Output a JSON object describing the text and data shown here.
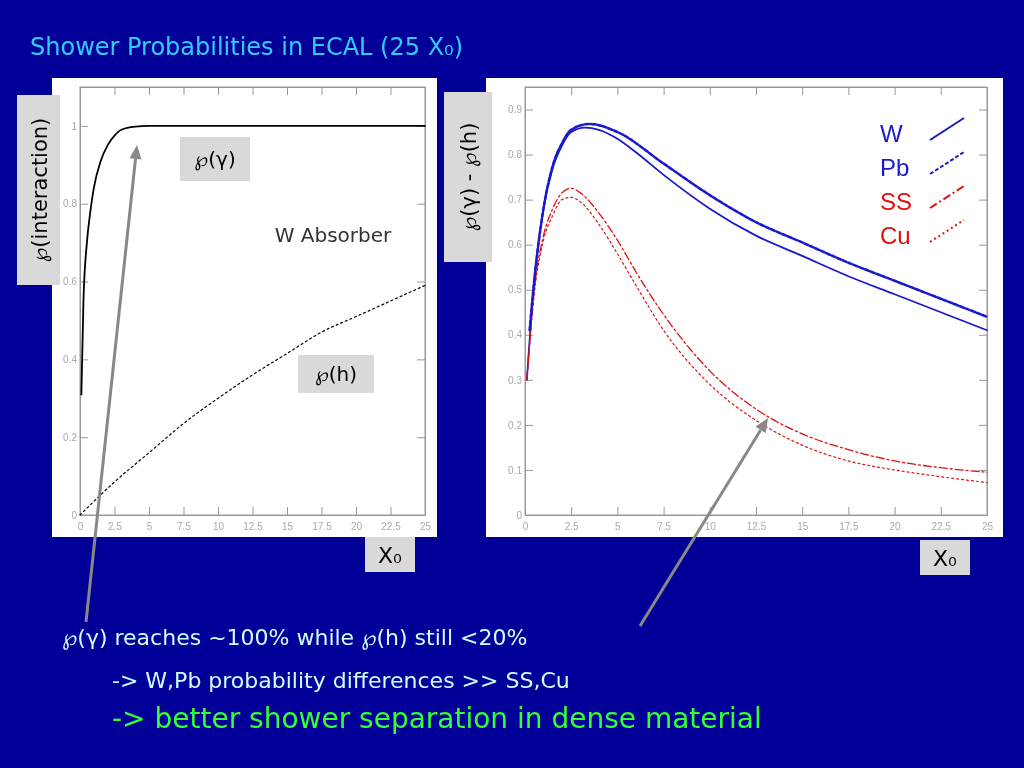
{
  "chart_data": [
    {
      "type": "line",
      "title": "Shower Probabilities in ECAL (25 X₀)",
      "xlabel": "X₀",
      "ylabel": "℘(interaction)",
      "xlim": [
        0,
        25
      ],
      "ylim": [
        0,
        1.1
      ],
      "xticks": [
        0,
        2.5,
        5,
        7.5,
        10,
        12.5,
        15,
        17.5,
        20,
        22.5,
        25
      ],
      "yticks": [
        0,
        0.2,
        0.4,
        0.6,
        0.8,
        1
      ],
      "legend": false,
      "marker": "none",
      "series": [
        {
          "name": "℘(γ)",
          "color": "#000000",
          "line_style": "solid",
          "x": [
            0.1,
            0.25,
            0.5,
            0.75,
            1,
            1.5,
            2,
            2.5,
            3,
            4,
            5,
            7.5,
            10,
            15,
            20,
            25
          ],
          "values": [
            0.31,
            0.55,
            0.7,
            0.78,
            0.84,
            0.91,
            0.95,
            0.975,
            0.99,
            0.998,
            1,
            1,
            1,
            1,
            1,
            1
          ]
        },
        {
          "name": "℘(h)",
          "color": "#000000",
          "line_style": "dotted",
          "x": [
            0,
            2.5,
            5,
            7.5,
            10,
            12.5,
            15,
            17.5,
            20,
            22.5,
            25
          ],
          "values": [
            0,
            0.085,
            0.16,
            0.235,
            0.3,
            0.36,
            0.415,
            0.47,
            0.51,
            0.55,
            0.59
          ]
        }
      ],
      "annotations": [
        "W Absorber"
      ]
    },
    {
      "type": "line",
      "xlabel": "X₀",
      "ylabel": "℘(γ) - ℘(h)",
      "xlim": [
        0,
        25
      ],
      "ylim": [
        0,
        0.95
      ],
      "xticks": [
        0,
        2.5,
        5,
        7.5,
        10,
        12.5,
        15,
        17.5,
        20,
        22.5,
        25
      ],
      "yticks": [
        0,
        0.1,
        0.2,
        0.3,
        0.4,
        0.5,
        0.6,
        0.7,
        0.8,
        0.9
      ],
      "legend": "top right",
      "marker": "none",
      "series": [
        {
          "name": "W",
          "color": "#1a1acc",
          "line_style": "solid",
          "x": [
            0.1,
            0.5,
            1,
            1.5,
            2,
            2.5,
            3.25,
            4,
            5,
            6,
            7.5,
            10,
            12.5,
            15,
            17.5,
            20,
            22.5,
            25
          ],
          "values": [
            0.3,
            0.52,
            0.68,
            0.77,
            0.82,
            0.85,
            0.86,
            0.855,
            0.835,
            0.805,
            0.755,
            0.68,
            0.62,
            0.575,
            0.53,
            0.49,
            0.45,
            0.41
          ]
        },
        {
          "name": "Pb",
          "color": "#1a1acc",
          "line_style": "dashed",
          "x": [
            0.25,
            0.5,
            1,
            1.5,
            2,
            2.5,
            3.5,
            5,
            7.5,
            10,
            12.5,
            15,
            17.5,
            20,
            22.5,
            25
          ],
          "values": [
            0.41,
            0.52,
            0.68,
            0.775,
            0.825,
            0.855,
            0.868,
            0.85,
            0.78,
            0.71,
            0.65,
            0.605,
            0.56,
            0.52,
            0.48,
            0.44
          ]
        },
        {
          "name": "SS",
          "color": "#e01010",
          "line_style": "dashdot",
          "x": [
            0.1,
            0.5,
            1,
            1.5,
            2,
            2.5,
            3,
            4,
            5,
            6,
            7.5,
            10,
            12.5,
            15,
            17.5,
            20,
            22.5,
            25
          ],
          "values": [
            0.3,
            0.5,
            0.62,
            0.68,
            0.715,
            0.725,
            0.715,
            0.67,
            0.61,
            0.54,
            0.445,
            0.32,
            0.235,
            0.18,
            0.145,
            0.12,
            0.105,
            0.095
          ]
        },
        {
          "name": "Cu",
          "color": "#e01010",
          "line_style": "dotted",
          "x": [
            0.1,
            0.5,
            1,
            1.5,
            2,
            2.5,
            3,
            4,
            5,
            6,
            7.5,
            10,
            12.5,
            15,
            17.5,
            20,
            22.5,
            25
          ],
          "values": [
            0.3,
            0.49,
            0.61,
            0.665,
            0.7,
            0.705,
            0.695,
            0.645,
            0.58,
            0.51,
            0.41,
            0.29,
            0.21,
            0.155,
            0.12,
            0.1,
            0.085,
            0.072
          ]
        }
      ],
      "annotations": [
        "℘(γ) reaches ~100% while ℘(h) still <20%",
        "-> W,Pb probability differences >> SS,Cu",
        "-> better shower separation in dense material"
      ]
    }
  ]
}
